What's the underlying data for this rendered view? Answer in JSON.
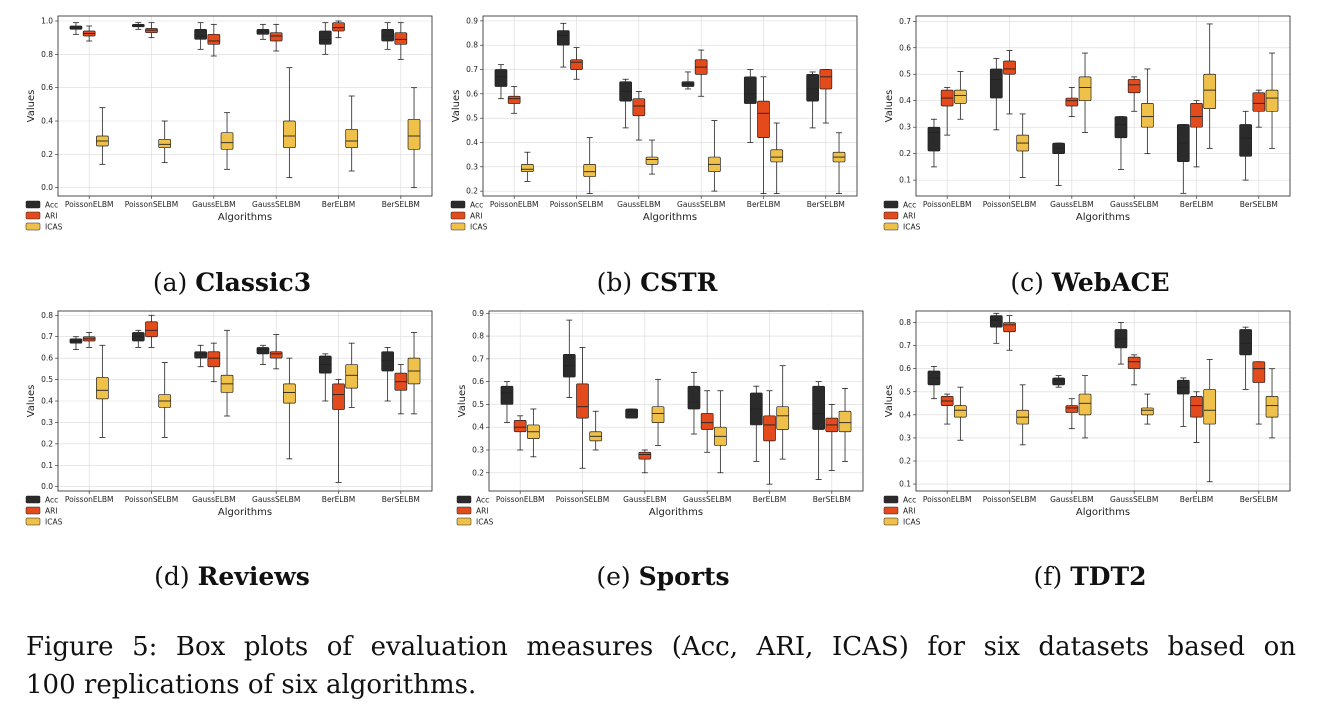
{
  "colors": {
    "Acc": "#2b2b2b",
    "ARI": "#e34a1c",
    "ICAS": "#efc14a",
    "grid": "#d9d9d9",
    "whisker": "#222222"
  },
  "caption": {
    "line1": "Figure 5: Box plots of evaluation measures (Acc, ARI, ICAS) for six datasets based on",
    "line2": "100 replications of six algorithms."
  },
  "chart_data": [
    {
      "type": "box",
      "label": "(a)",
      "dataset": "Classic3",
      "xlabel": "Algorithms",
      "ylabel": "Values",
      "categories": [
        "PoissonELBM",
        "PoissonSELBM",
        "GaussELBM",
        "GaussSELBM",
        "BerELBM",
        "BerSELBM"
      ],
      "ylim": [
        -0.05,
        1.03
      ],
      "yticks": [
        "0.0",
        "0.2",
        "0.4",
        "0.6",
        "0.8",
        "1.0"
      ],
      "legend": [
        "Acc",
        "ARI",
        "ICAS"
      ],
      "series": [
        {
          "name": "Acc",
          "boxes": [
            [
              0.92,
              0.95,
              0.96,
              0.97,
              0.99
            ],
            [
              0.95,
              0.965,
              0.975,
              0.98,
              0.99
            ],
            [
              0.83,
              0.89,
              0.91,
              0.95,
              0.99
            ],
            [
              0.89,
              0.92,
              0.935,
              0.95,
              0.98
            ],
            [
              0.8,
              0.86,
              0.89,
              0.94,
              0.99
            ],
            [
              0.83,
              0.88,
              0.91,
              0.95,
              0.99
            ]
          ]
        },
        {
          "name": "ARI",
          "boxes": [
            [
              0.88,
              0.91,
              0.925,
              0.94,
              0.97
            ],
            [
              0.9,
              0.93,
              0.945,
              0.955,
              0.99
            ],
            [
              0.79,
              0.86,
              0.88,
              0.92,
              0.98
            ],
            [
              0.82,
              0.88,
              0.91,
              0.93,
              0.98
            ],
            [
              0.9,
              0.94,
              0.96,
              0.99,
              1.0
            ],
            [
              0.77,
              0.86,
              0.89,
              0.93,
              0.99
            ]
          ]
        },
        {
          "name": "ICAS",
          "boxes": [
            [
              0.14,
              0.25,
              0.28,
              0.31,
              0.48
            ],
            [
              0.15,
              0.24,
              0.26,
              0.29,
              0.4
            ],
            [
              0.11,
              0.23,
              0.27,
              0.33,
              0.45
            ],
            [
              0.06,
              0.24,
              0.31,
              0.4,
              0.72
            ],
            [
              0.1,
              0.24,
              0.28,
              0.35,
              0.55
            ],
            [
              0.0,
              0.23,
              0.31,
              0.41,
              0.6
            ]
          ]
        }
      ]
    },
    {
      "type": "box",
      "label": "(b)",
      "dataset": "CSTR",
      "xlabel": "Algorithms",
      "ylabel": "Values",
      "categories": [
        "PoissonELBM",
        "PoissonSELBM",
        "GaussELBM",
        "GaussSELBM",
        "BerELBM",
        "BerSELBM"
      ],
      "ylim": [
        0.18,
        0.92
      ],
      "yticks": [
        "0.2",
        "0.3",
        "0.4",
        "0.5",
        "0.6",
        "0.7",
        "0.8",
        "0.9"
      ],
      "legend": [
        "Acc",
        "ARI",
        "ICAS"
      ],
      "series": [
        {
          "name": "Acc",
          "boxes": [
            [
              0.58,
              0.63,
              0.67,
              0.7,
              0.72
            ],
            [
              0.71,
              0.8,
              0.84,
              0.86,
              0.89
            ],
            [
              0.46,
              0.57,
              0.61,
              0.65,
              0.66
            ],
            [
              0.62,
              0.63,
              0.64,
              0.65,
              0.69
            ],
            [
              0.4,
              0.56,
              0.6,
              0.67,
              0.7
            ],
            [
              0.46,
              0.57,
              0.62,
              0.68,
              0.69
            ]
          ]
        },
        {
          "name": "ARI",
          "boxes": [
            [
              0.52,
              0.56,
              0.58,
              0.59,
              0.63
            ],
            [
              0.66,
              0.7,
              0.73,
              0.74,
              0.79
            ],
            [
              0.41,
              0.51,
              0.55,
              0.58,
              0.61
            ],
            [
              0.59,
              0.68,
              0.71,
              0.74,
              0.78
            ],
            [
              0.19,
              0.42,
              0.52,
              0.57,
              0.67
            ],
            [
              0.48,
              0.62,
              0.67,
              0.7,
              0.7
            ]
          ]
        },
        {
          "name": "ICAS",
          "boxes": [
            [
              0.24,
              0.28,
              0.29,
              0.31,
              0.36
            ],
            [
              0.19,
              0.26,
              0.28,
              0.31,
              0.42
            ],
            [
              0.27,
              0.31,
              0.33,
              0.34,
              0.41
            ],
            [
              0.2,
              0.28,
              0.31,
              0.34,
              0.49
            ],
            [
              0.19,
              0.32,
              0.34,
              0.37,
              0.48
            ],
            [
              0.19,
              0.32,
              0.34,
              0.36,
              0.44
            ]
          ]
        }
      ]
    },
    {
      "type": "box",
      "label": "(c)",
      "dataset": "WebACE",
      "xlabel": "Algorithms",
      "ylabel": "Values",
      "categories": [
        "PoissonELBM",
        "PoissonSELBM",
        "GaussELBM",
        "GaussSELBM",
        "BerELBM",
        "BerSELBM"
      ],
      "ylim": [
        0.04,
        0.72
      ],
      "yticks": [
        "0.1",
        "0.2",
        "0.3",
        "0.4",
        "0.5",
        "0.6",
        "0.7"
      ],
      "legend": [
        "Acc",
        "ARI",
        "ICAS"
      ],
      "series": [
        {
          "name": "Acc",
          "boxes": [
            [
              0.15,
              0.21,
              0.28,
              0.3,
              0.33
            ],
            [
              0.29,
              0.41,
              0.48,
              0.52,
              0.56
            ],
            [
              0.08,
              0.2,
              0.22,
              0.24,
              0.24
            ],
            [
              0.14,
              0.26,
              0.31,
              0.34,
              0.34
            ],
            [
              0.05,
              0.17,
              0.24,
              0.31,
              0.31
            ],
            [
              0.1,
              0.19,
              0.26,
              0.31,
              0.36
            ]
          ]
        },
        {
          "name": "ARI",
          "boxes": [
            [
              0.27,
              0.38,
              0.41,
              0.44,
              0.45
            ],
            [
              0.35,
              0.5,
              0.52,
              0.55,
              0.59
            ],
            [
              0.34,
              0.38,
              0.4,
              0.41,
              0.45
            ],
            [
              0.36,
              0.43,
              0.46,
              0.48,
              0.49
            ],
            [
              0.15,
              0.3,
              0.34,
              0.39,
              0.4
            ],
            [
              0.3,
              0.36,
              0.39,
              0.43,
              0.44
            ]
          ]
        },
        {
          "name": "ICAS",
          "boxes": [
            [
              0.33,
              0.39,
              0.42,
              0.44,
              0.51
            ],
            [
              0.11,
              0.21,
              0.24,
              0.27,
              0.35
            ],
            [
              0.28,
              0.4,
              0.45,
              0.49,
              0.58
            ],
            [
              0.2,
              0.3,
              0.34,
              0.39,
              0.52
            ],
            [
              0.22,
              0.37,
              0.44,
              0.5,
              0.69
            ],
            [
              0.22,
              0.36,
              0.41,
              0.44,
              0.58
            ]
          ]
        }
      ]
    },
    {
      "type": "box",
      "label": "(d)",
      "dataset": "Reviews",
      "xlabel": "Algorithms",
      "ylabel": "Values",
      "categories": [
        "PoissonELBM",
        "PoissonSELBM",
        "GaussELBM",
        "GaussSELBM",
        "BerELBM",
        "BerSELBM"
      ],
      "ylim": [
        -0.02,
        0.82
      ],
      "yticks": [
        "0.0",
        "0.1",
        "0.2",
        "0.3",
        "0.4",
        "0.5",
        "0.6",
        "0.7",
        "0.8"
      ],
      "legend": [
        "Acc",
        "ARI",
        "ICAS"
      ],
      "series": [
        {
          "name": "Acc",
          "boxes": [
            [
              0.64,
              0.67,
              0.68,
              0.69,
              0.7
            ],
            [
              0.65,
              0.68,
              0.7,
              0.72,
              0.73
            ],
            [
              0.56,
              0.6,
              0.62,
              0.63,
              0.66
            ],
            [
              0.57,
              0.62,
              0.64,
              0.65,
              0.66
            ],
            [
              0.4,
              0.53,
              0.57,
              0.61,
              0.62
            ],
            [
              0.4,
              0.54,
              0.59,
              0.63,
              0.65
            ]
          ]
        },
        {
          "name": "ARI",
          "boxes": [
            [
              0.65,
              0.68,
              0.69,
              0.7,
              0.72
            ],
            [
              0.65,
              0.7,
              0.73,
              0.77,
              0.8
            ],
            [
              0.49,
              0.56,
              0.6,
              0.63,
              0.67
            ],
            [
              0.55,
              0.6,
              0.62,
              0.63,
              0.71
            ],
            [
              0.02,
              0.36,
              0.43,
              0.48,
              0.5
            ],
            [
              0.34,
              0.45,
              0.49,
              0.53,
              0.57
            ]
          ]
        },
        {
          "name": "ICAS",
          "boxes": [
            [
              0.23,
              0.41,
              0.45,
              0.51,
              0.66
            ],
            [
              0.23,
              0.37,
              0.4,
              0.43,
              0.58
            ],
            [
              0.33,
              0.44,
              0.48,
              0.52,
              0.73
            ],
            [
              0.13,
              0.39,
              0.44,
              0.48,
              0.6
            ],
            [
              0.37,
              0.46,
              0.52,
              0.57,
              0.67
            ],
            [
              0.34,
              0.48,
              0.54,
              0.6,
              0.72
            ]
          ]
        }
      ]
    },
    {
      "type": "box",
      "label": "(e)",
      "dataset": "Sports",
      "xlabel": "Algorithms",
      "ylabel": "Values",
      "categories": [
        "PoissonELBM",
        "PoissonSELBM",
        "GaussELBM",
        "GaussSELBM",
        "BerELBM",
        "BerSELBM"
      ],
      "ylim": [
        0.12,
        0.91
      ],
      "yticks": [
        "0.2",
        "0.3",
        "0.4",
        "0.5",
        "0.6",
        "0.7",
        "0.8",
        "0.9"
      ],
      "legend": [
        "Acc",
        "ARI",
        "ICAS"
      ],
      "series": [
        {
          "name": "Acc",
          "boxes": [
            [
              0.42,
              0.5,
              0.55,
              0.58,
              0.6
            ],
            [
              0.53,
              0.62,
              0.67,
              0.72,
              0.87
            ],
            [
              0.44,
              0.44,
              0.47,
              0.48,
              0.48
            ],
            [
              0.37,
              0.48,
              0.51,
              0.58,
              0.64
            ],
            [
              0.25,
              0.41,
              0.48,
              0.55,
              0.58
            ],
            [
              0.17,
              0.39,
              0.46,
              0.58,
              0.6
            ]
          ]
        },
        {
          "name": "ARI",
          "boxes": [
            [
              0.3,
              0.38,
              0.4,
              0.43,
              0.45
            ],
            [
              0.22,
              0.44,
              0.49,
              0.59,
              0.75
            ],
            [
              0.2,
              0.26,
              0.28,
              0.29,
              0.3
            ],
            [
              0.29,
              0.39,
              0.42,
              0.46,
              0.56
            ],
            [
              0.15,
              0.34,
              0.41,
              0.45,
              0.56
            ],
            [
              0.21,
              0.38,
              0.41,
              0.44,
              0.5
            ]
          ]
        },
        {
          "name": "ICAS",
          "boxes": [
            [
              0.27,
              0.35,
              0.38,
              0.41,
              0.48
            ],
            [
              0.3,
              0.34,
              0.36,
              0.38,
              0.47
            ],
            [
              0.32,
              0.42,
              0.46,
              0.49,
              0.61
            ],
            [
              0.2,
              0.32,
              0.36,
              0.4,
              0.56
            ],
            [
              0.26,
              0.39,
              0.45,
              0.49,
              0.67
            ],
            [
              0.25,
              0.38,
              0.42,
              0.47,
              0.57
            ]
          ]
        }
      ]
    },
    {
      "type": "box",
      "label": "(f)",
      "dataset": "TDT2",
      "xlabel": "Algorithms",
      "ylabel": "Values",
      "categories": [
        "PoissonELBM",
        "PoissonSELBM",
        "GaussELBM",
        "GaussSELBM",
        "BerELBM",
        "BerSELBM"
      ],
      "ylim": [
        0.07,
        0.85
      ],
      "yticks": [
        "0.1",
        "0.2",
        "0.3",
        "0.4",
        "0.5",
        "0.6",
        "0.7",
        "0.8"
      ],
      "legend": [
        "Acc",
        "ARI",
        "ICAS"
      ],
      "series": [
        {
          "name": "Acc",
          "boxes": [
            [
              0.47,
              0.53,
              0.56,
              0.59,
              0.61
            ],
            [
              0.71,
              0.78,
              0.81,
              0.83,
              0.84
            ],
            [
              0.52,
              0.53,
              0.55,
              0.56,
              0.57
            ],
            [
              0.62,
              0.69,
              0.73,
              0.77,
              0.8
            ],
            [
              0.35,
              0.49,
              0.52,
              0.55,
              0.56
            ],
            [
              0.51,
              0.66,
              0.71,
              0.77,
              0.78
            ]
          ]
        },
        {
          "name": "ARI",
          "boxes": [
            [
              0.36,
              0.44,
              0.46,
              0.48,
              0.49
            ],
            [
              0.68,
              0.76,
              0.79,
              0.8,
              0.83
            ],
            [
              0.34,
              0.41,
              0.43,
              0.44,
              0.47
            ],
            [
              0.53,
              0.6,
              0.63,
              0.65,
              0.66
            ],
            [
              0.28,
              0.39,
              0.44,
              0.48,
              0.5
            ],
            [
              0.36,
              0.54,
              0.6,
              0.63,
              0.63
            ]
          ]
        },
        {
          "name": "ICAS",
          "boxes": [
            [
              0.29,
              0.39,
              0.42,
              0.44,
              0.52
            ],
            [
              0.27,
              0.36,
              0.39,
              0.42,
              0.53
            ],
            [
              0.3,
              0.4,
              0.45,
              0.49,
              0.57
            ],
            [
              0.36,
              0.4,
              0.42,
              0.43,
              0.49
            ],
            [
              0.11,
              0.36,
              0.42,
              0.51,
              0.64
            ],
            [
              0.3,
              0.39,
              0.44,
              0.48,
              0.6
            ]
          ]
        }
      ]
    }
  ]
}
